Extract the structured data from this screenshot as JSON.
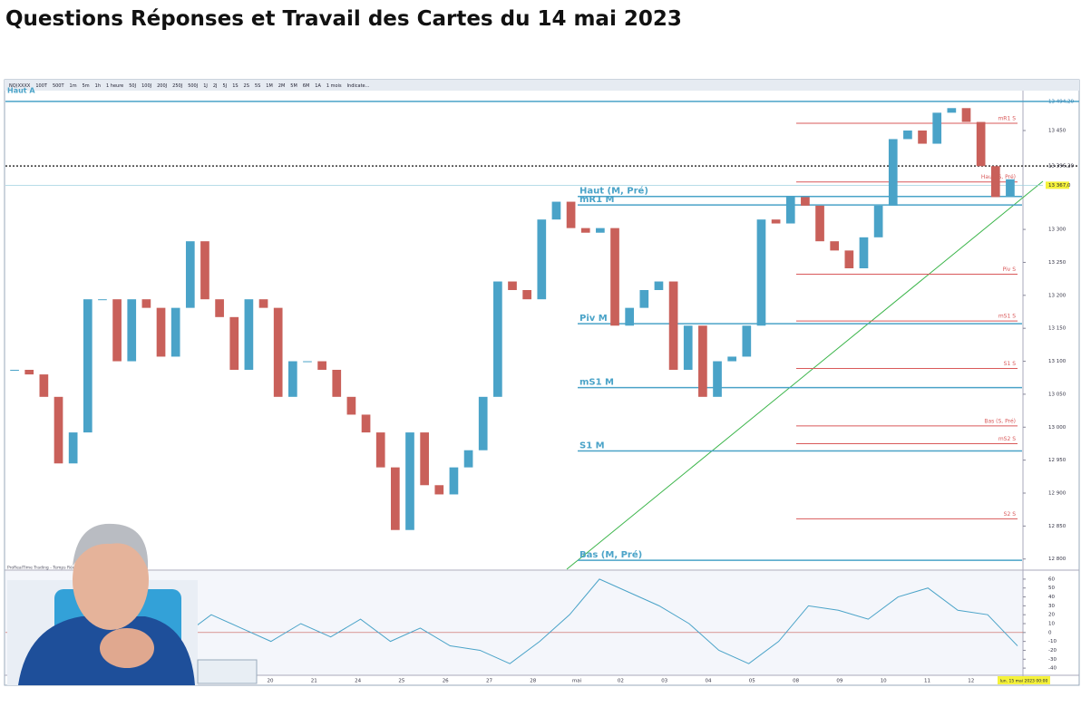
{
  "page": {
    "title": "Questions Réponses et Travail des Cartes du 14 mai 2023"
  },
  "chart": {
    "toolbar": [
      "NQ(XXXX",
      "100T",
      "500T",
      "1m",
      "5m",
      "1h",
      "1 heure",
      "50J",
      "100J",
      "200J",
      "250J",
      "500J",
      "1J",
      "2J",
      "5J",
      "1S",
      "2S",
      "5S",
      "1M",
      "2M",
      "5M",
      "6M",
      "1A",
      "1 mois",
      "Indicate..."
    ],
    "corner_label": "Haut A",
    "watermark": "ProRealTime Trading - Temps Réel",
    "ylim": [
      12790,
      13505
    ],
    "yticks": [
      {
        "value": 13450,
        "label": "13 450"
      },
      {
        "value": 13300,
        "label": "13 300"
      },
      {
        "value": 13250,
        "label": "13 250"
      },
      {
        "value": 13200,
        "label": "13 200"
      },
      {
        "value": 13150,
        "label": "13 150"
      },
      {
        "value": 13100,
        "label": "13 100"
      },
      {
        "value": 13050,
        "label": "13 050"
      },
      {
        "value": 13000,
        "label": "13 000"
      },
      {
        "value": 12950,
        "label": "12 950"
      },
      {
        "value": 12900,
        "label": "12 900"
      },
      {
        "value": 12850,
        "label": "12 850"
      },
      {
        "value": 12800,
        "label": "12 800"
      }
    ],
    "markers": [
      {
        "value": 13494.2,
        "label": "13 494,20",
        "style": "line"
      },
      {
        "value": 13396.2,
        "label": "13 396,20",
        "style": "dotted"
      },
      {
        "value": 13367,
        "label": "13 367,0",
        "style": "current"
      }
    ],
    "closes": [
      13087,
      13080,
      13046,
      12945,
      12992,
      13194,
      13194,
      13100,
      13194,
      13181,
      13107,
      13181,
      13282,
      13194,
      13167,
      13087,
      13194,
      13181,
      13046,
      13100,
      13100,
      13087,
      13046,
      13019,
      12992,
      12939,
      12844,
      12992,
      12912,
      12898,
      12939,
      12965,
      13046,
      13221,
      13208,
      13194,
      13315,
      13342,
      13302,
      13295,
      13302,
      13154,
      13181,
      13208,
      13221,
      13087,
      13154,
      13046,
      13100,
      13107,
      13154,
      13315,
      13309,
      13349,
      13336,
      13282,
      13268,
      13241,
      13288,
      13336,
      13437,
      13450,
      13430,
      13477,
      13484,
      13463,
      13396,
      13349,
      13376
    ],
    "up_color": "#4aa3c8",
    "down_color": "#c9605a",
    "monthly_levels": [
      {
        "label": "Haut (M, Pré)",
        "value": 13350
      },
      {
        "label": "mR1 M",
        "value": 13337
      },
      {
        "label": "Piv M",
        "value": 13157
      },
      {
        "label": "mS1 M",
        "value": 13060
      },
      {
        "label": "S1 M",
        "value": 12964
      },
      {
        "label": "Bas (M, Pré)",
        "value": 12798
      }
    ],
    "monthly_color": "#4aa3c8",
    "weekly_levels": [
      {
        "label": "mR1 S",
        "value": 13461
      },
      {
        "label": "Haut (S, Pré)",
        "value": 13372
      },
      {
        "label": "Piv S",
        "value": 13232
      },
      {
        "label": "mS1 S",
        "value": 13161
      },
      {
        "label": "S1 S",
        "value": 13089
      },
      {
        "label": "Bas (S, Pré)",
        "value": 13002
      },
      {
        "label": "mS2 S",
        "value": 12975
      },
      {
        "label": "S2 S",
        "value": 12861
      }
    ],
    "weekly_color": "#d9595a",
    "dates": [
      "20",
      "21",
      "24",
      "25",
      "26",
      "27",
      "28",
      "mai",
      "02",
      "03",
      "04",
      "05",
      "08",
      "09",
      "10",
      "11",
      "12"
    ],
    "date_cursor": "lun. 15 mai 2023 00:00",
    "macd_ylim": [
      -45,
      65
    ],
    "macd_yticks": [
      60,
      50,
      40,
      30,
      20,
      10,
      0,
      -10,
      -20,
      -30,
      -40
    ],
    "macd": [
      -5,
      20,
      5,
      -10,
      10,
      -5,
      15,
      -10,
      5,
      -15,
      -20,
      -35,
      -10,
      20,
      60,
      45,
      30,
      10,
      -20,
      -35,
      -10,
      30,
      25,
      15,
      40,
      50,
      25,
      20,
      -15
    ],
    "macd_color": "#4aa3c8"
  }
}
